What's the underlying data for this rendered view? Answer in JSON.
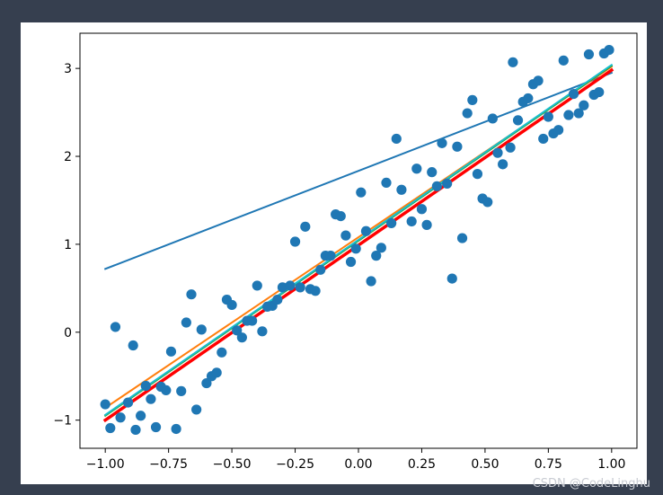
{
  "chart_data": {
    "type": "scatter",
    "xlim": [
      -1.1,
      1.1
    ],
    "ylim": [
      -1.32,
      3.4
    ],
    "xticks": [
      -1.0,
      -0.75,
      -0.5,
      -0.25,
      0.0,
      0.25,
      0.5,
      0.75,
      1.0
    ],
    "xtick_labels": [
      "−1.00",
      "−0.75",
      "−0.50",
      "−0.25",
      "0.00",
      "0.25",
      "0.50",
      "0.75",
      "1.00"
    ],
    "yticks": [
      -1,
      0,
      1,
      2,
      3
    ],
    "ytick_labels": [
      "−1",
      "0",
      "1",
      "2",
      "3"
    ],
    "grid": false,
    "scatter": {
      "color": "#1f77b4",
      "points": [
        [
          -0.98,
          -1.09
        ],
        [
          -1.0,
          -0.82
        ],
        [
          -0.96,
          0.06
        ],
        [
          -0.94,
          -0.97
        ],
        [
          -0.91,
          -0.8
        ],
        [
          -0.89,
          -0.15
        ],
        [
          -0.88,
          -1.11
        ],
        [
          -0.86,
          -0.95
        ],
        [
          -0.84,
          -0.61
        ],
        [
          -0.82,
          -0.76
        ],
        [
          -0.8,
          -1.08
        ],
        [
          -0.78,
          -0.62
        ],
        [
          -0.76,
          -0.66
        ],
        [
          -0.74,
          -0.22
        ],
        [
          -0.72,
          -1.1
        ],
        [
          -0.7,
          -0.67
        ],
        [
          -0.68,
          0.11
        ],
        [
          -0.66,
          0.43
        ],
        [
          -0.64,
          -0.88
        ],
        [
          -0.62,
          0.03
        ],
        [
          -0.6,
          -0.58
        ],
        [
          -0.58,
          -0.5
        ],
        [
          -0.56,
          -0.46
        ],
        [
          -0.54,
          -0.23
        ],
        [
          -0.52,
          0.37
        ],
        [
          -0.5,
          0.31
        ],
        [
          -0.48,
          0.02
        ],
        [
          -0.46,
          -0.06
        ],
        [
          -0.44,
          0.13
        ],
        [
          -0.42,
          0.13
        ],
        [
          -0.4,
          0.53
        ],
        [
          -0.38,
          0.01
        ],
        [
          -0.36,
          0.29
        ],
        [
          -0.34,
          0.3
        ],
        [
          -0.32,
          0.37
        ],
        [
          -0.3,
          0.51
        ],
        [
          -0.27,
          0.53
        ],
        [
          -0.25,
          1.03
        ],
        [
          -0.23,
          0.51
        ],
        [
          -0.21,
          1.2
        ],
        [
          -0.19,
          0.49
        ],
        [
          -0.17,
          0.47
        ],
        [
          -0.15,
          0.71
        ],
        [
          -0.13,
          0.87
        ],
        [
          -0.11,
          0.87
        ],
        [
          -0.09,
          1.34
        ],
        [
          -0.07,
          1.32
        ],
        [
          -0.05,
          1.1
        ],
        [
          -0.03,
          0.8
        ],
        [
          -0.01,
          0.95
        ],
        [
          0.01,
          1.59
        ],
        [
          0.03,
          1.15
        ],
        [
          0.05,
          0.58
        ],
        [
          0.07,
          0.87
        ],
        [
          0.09,
          0.96
        ],
        [
          0.11,
          1.7
        ],
        [
          0.13,
          1.24
        ],
        [
          0.15,
          2.2
        ],
        [
          0.17,
          1.62
        ],
        [
          0.21,
          1.26
        ],
        [
          0.23,
          1.86
        ],
        [
          0.25,
          1.4
        ],
        [
          0.27,
          1.22
        ],
        [
          0.29,
          1.82
        ],
        [
          0.31,
          1.66
        ],
        [
          0.33,
          2.15
        ],
        [
          0.35,
          1.69
        ],
        [
          0.37,
          0.61
        ],
        [
          0.39,
          2.11
        ],
        [
          0.41,
          1.07
        ],
        [
          0.43,
          2.49
        ],
        [
          0.45,
          2.64
        ],
        [
          0.47,
          1.8
        ],
        [
          0.49,
          1.52
        ],
        [
          0.51,
          1.48
        ],
        [
          0.53,
          2.43
        ],
        [
          0.55,
          2.04
        ],
        [
          0.57,
          1.91
        ],
        [
          0.6,
          2.1
        ],
        [
          0.61,
          3.07
        ],
        [
          0.63,
          2.41
        ],
        [
          0.65,
          2.62
        ],
        [
          0.67,
          2.66
        ],
        [
          0.69,
          2.82
        ],
        [
          0.71,
          2.86
        ],
        [
          0.73,
          2.2
        ],
        [
          0.75,
          2.45
        ],
        [
          0.77,
          2.26
        ],
        [
          0.79,
          2.3
        ],
        [
          0.81,
          3.09
        ],
        [
          0.83,
          2.47
        ],
        [
          0.85,
          2.71
        ],
        [
          0.87,
          2.49
        ],
        [
          0.89,
          2.58
        ],
        [
          0.91,
          3.16
        ],
        [
          0.93,
          2.7
        ],
        [
          0.95,
          2.73
        ],
        [
          0.97,
          3.17
        ],
        [
          0.99,
          3.21
        ]
      ]
    },
    "lines": [
      {
        "color": "#1f77b4",
        "x": [
          -1.0,
          1.0
        ],
        "y": [
          0.72,
          2.95
        ],
        "width": 2
      },
      {
        "color": "#ff7f0e",
        "x": [
          -1.0,
          1.0
        ],
        "y": [
          -0.86,
          3.02
        ],
        "width": 2
      },
      {
        "color": "#2ca02c",
        "x": [
          -1.0,
          1.0
        ],
        "y": [
          -0.95,
          3.03
        ],
        "width": 2
      },
      {
        "color": "#17becf",
        "x": [
          -1.0,
          1.0
        ],
        "y": [
          -0.94,
          3.04
        ],
        "width": 2
      },
      {
        "color": "#ff0000",
        "x": [
          -1.0,
          1.0
        ],
        "y": [
          -1.0,
          2.98
        ],
        "width": 3.5
      }
    ]
  },
  "watermark": "CSDN @CodeLinghu"
}
